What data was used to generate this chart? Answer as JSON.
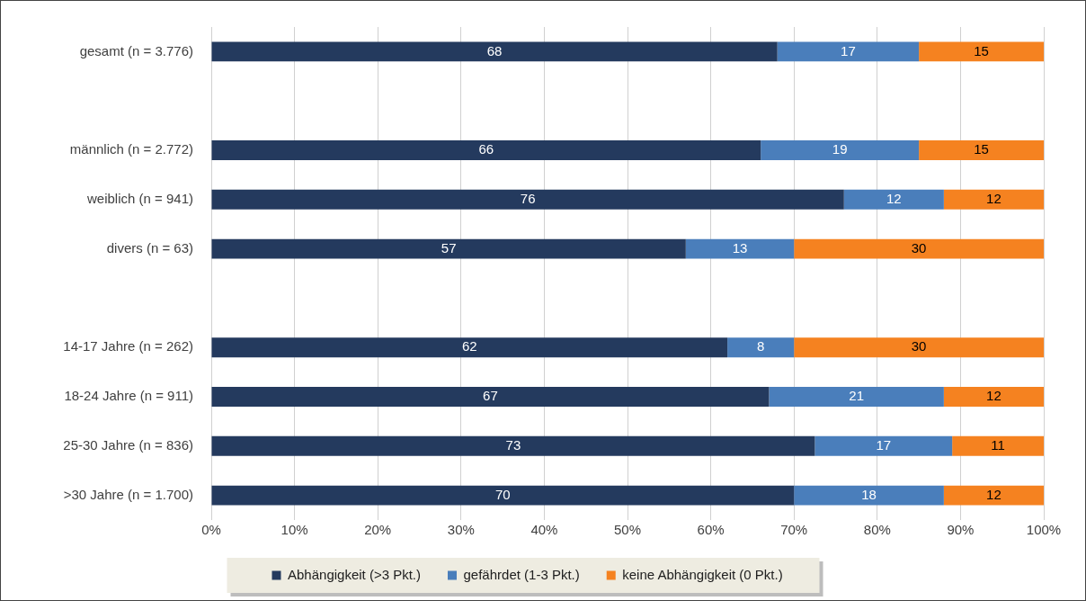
{
  "chart_data": {
    "type": "bar",
    "orientation": "horizontal",
    "stacked": true,
    "categories": [
      "gesamt (n = 3.776)",
      null,
      "männlich (n = 2.772)",
      "weiblich (n = 941)",
      "divers (n = 63)",
      null,
      "14-17 Jahre (n = 262)",
      "18-24 Jahre (n = 911)",
      "25-30 Jahre (n = 836)",
      ">30 Jahre (n = 1.700)"
    ],
    "series": [
      {
        "name": "Abhängigkeit (>3 Pkt.)",
        "color": "#243a5e",
        "values": [
          68,
          null,
          66,
          76,
          57,
          null,
          62,
          67,
          72.5,
          70
        ],
        "value_labels": [
          "68",
          null,
          "66",
          "76",
          "57",
          null,
          "62",
          "67",
          "73",
          "70"
        ]
      },
      {
        "name": "gefährdet (1-3 Pkt.)",
        "color": "#4a7ebb",
        "values": [
          17,
          null,
          19,
          12,
          13,
          null,
          8,
          21,
          16.5,
          18
        ],
        "value_labels": [
          "17",
          null,
          "19",
          "12",
          "13",
          null,
          "8",
          "21",
          "17",
          "18"
        ]
      },
      {
        "name": "keine Abhängigkeit (0 Pkt.)",
        "color": "#f58220",
        "values": [
          15,
          null,
          15,
          12,
          30,
          null,
          30,
          12,
          11,
          12
        ],
        "value_labels": [
          "15",
          null,
          "15",
          "12",
          "30",
          null,
          "30",
          "12",
          "11",
          "12"
        ]
      }
    ],
    "xlim": [
      0,
      100
    ],
    "xticks": [
      {
        "value": 0,
        "label": "0%"
      },
      {
        "value": 10,
        "label": "10%"
      },
      {
        "value": 20,
        "label": "20%"
      },
      {
        "value": 30,
        "label": "30%"
      },
      {
        "value": 40,
        "label": "40%"
      },
      {
        "value": 50,
        "label": "50%"
      },
      {
        "value": 60,
        "label": "60%"
      },
      {
        "value": 70,
        "label": "70%"
      },
      {
        "value": 80,
        "label": "80%"
      },
      {
        "value": 90,
        "label": "90%"
      },
      {
        "value": 100,
        "label": "100%"
      }
    ],
    "grid": "x",
    "legend": "bottom"
  }
}
